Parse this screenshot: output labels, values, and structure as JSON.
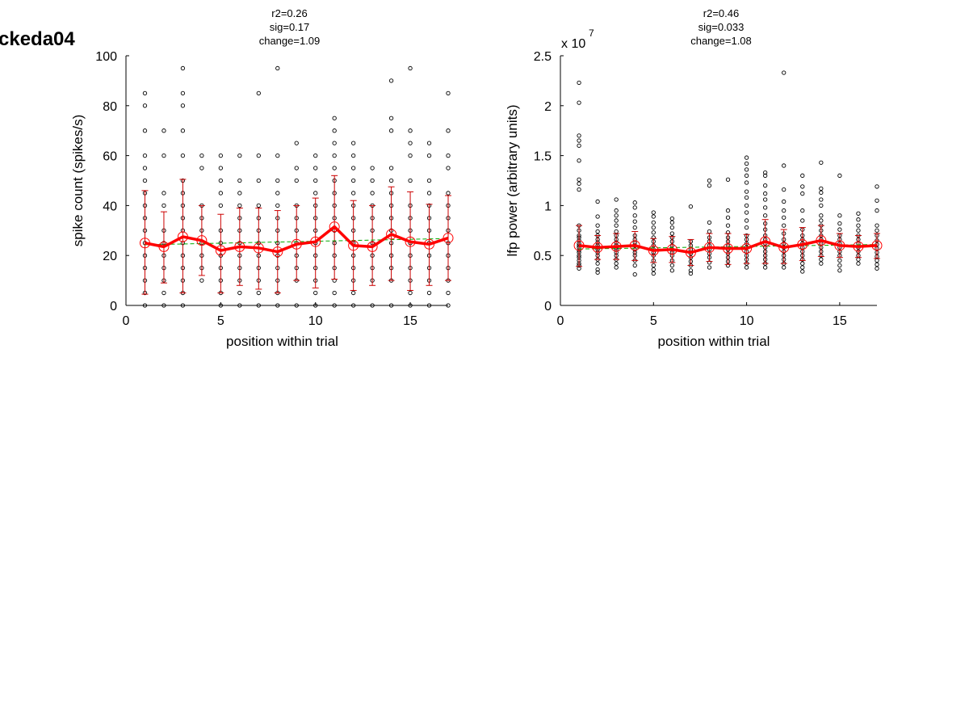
{
  "figure": {
    "id_label": "ckeda04"
  },
  "colors": {
    "mean_line": "#ff0000",
    "error_bar": "#cc0000",
    "fit_line": "#00aa00",
    "points": "#000000",
    "axis": "#000000"
  },
  "chart_data": [
    {
      "type": "scatter",
      "stats": [
        "r2=0.26",
        "sig=0.17",
        "change=1.09"
      ],
      "xlabel": "position within trial",
      "ylabel": "spike count (spikes/s)",
      "exponent_label": "",
      "xlim": [
        0,
        17
      ],
      "ylim": [
        0,
        100
      ],
      "xticks": [
        0,
        5,
        10,
        15
      ],
      "yticks": [
        0,
        20,
        40,
        60,
        80,
        100
      ],
      "ytick_labels": [
        "0",
        "20",
        "40",
        "60",
        "80",
        "100"
      ],
      "x": [
        1,
        2,
        3,
        4,
        5,
        6,
        7,
        8,
        9,
        10,
        11,
        12,
        13,
        14,
        15,
        16,
        17
      ],
      "mean": [
        25,
        23.5,
        27.5,
        26,
        22,
        23.5,
        23,
        21.5,
        24.5,
        25.5,
        31.5,
        24,
        23.5,
        28.5,
        25.5,
        24.5,
        27
      ],
      "err_low": [
        4.5,
        9,
        5,
        12,
        5,
        8,
        6.5,
        5,
        10,
        7,
        10.5,
        6,
        8,
        10,
        6,
        8,
        10
      ],
      "err_high": [
        46,
        37.5,
        50.5,
        40,
        36.5,
        39,
        39,
        38,
        40,
        43,
        52,
        42,
        40,
        47.5,
        45.5,
        40.5,
        44
      ],
      "fit": {
        "x": [
          1,
          17
        ],
        "y": [
          24.3,
          26.8
        ]
      },
      "raw_points": [
        [
          0,
          5,
          10,
          15,
          20,
          25,
          30,
          35,
          40,
          45,
          50,
          55,
          60,
          70,
          80,
          85
        ],
        [
          0,
          5,
          10,
          15,
          20,
          25,
          30,
          40,
          45,
          60,
          70
        ],
        [
          0,
          5,
          10,
          15,
          20,
          25,
          30,
          35,
          40,
          45,
          50,
          60,
          70,
          80,
          85,
          95
        ],
        [
          10,
          15,
          20,
          25,
          30,
          35,
          40,
          55,
          60
        ],
        [
          0,
          5,
          10,
          15,
          20,
          25,
          30,
          40,
          45,
          50,
          55,
          60
        ],
        [
          0,
          5,
          10,
          15,
          20,
          25,
          30,
          35,
          40,
          45,
          50,
          60
        ],
        [
          0,
          5,
          10,
          15,
          20,
          25,
          30,
          35,
          40,
          50,
          60,
          85
        ],
        [
          0,
          5,
          10,
          15,
          20,
          25,
          30,
          35,
          40,
          45,
          50,
          60,
          95
        ],
        [
          0,
          10,
          15,
          20,
          25,
          30,
          35,
          40,
          50,
          55,
          65
        ],
        [
          0,
          5,
          10,
          15,
          20,
          25,
          30,
          35,
          40,
          45,
          50,
          55,
          60
        ],
        [
          0,
          5,
          10,
          15,
          20,
          25,
          30,
          35,
          40,
          45,
          50,
          55,
          60,
          65,
          70,
          75
        ],
        [
          0,
          5,
          10,
          15,
          20,
          25,
          30,
          35,
          40,
          45,
          50,
          55,
          60,
          65
        ],
        [
          0,
          10,
          15,
          20,
          25,
          30,
          35,
          40,
          45,
          50,
          55
        ],
        [
          0,
          10,
          15,
          20,
          25,
          30,
          35,
          40,
          45,
          50,
          55,
          70,
          75,
          90
        ],
        [
          0,
          5,
          10,
          15,
          20,
          25,
          30,
          35,
          40,
          50,
          60,
          65,
          70,
          95
        ],
        [
          0,
          5,
          10,
          15,
          20,
          25,
          30,
          35,
          40,
          45,
          50,
          60,
          65
        ],
        [
          0,
          5,
          10,
          15,
          20,
          25,
          30,
          35,
          40,
          45,
          55,
          60,
          70,
          85
        ]
      ]
    },
    {
      "type": "scatter",
      "stats": [
        "r2=0.46",
        "sig=0.033",
        "change=1.08"
      ],
      "xlabel": "position within trial",
      "ylabel": "lfp power (arbitrary units)",
      "exponent_label": "x 10",
      "exponent_power": "7",
      "xlim": [
        0,
        17
      ],
      "ylim": [
        0,
        2.5
      ],
      "xticks": [
        0,
        5,
        10,
        15
      ],
      "yticks": [
        0,
        0.5,
        1,
        1.5,
        2,
        2.5
      ],
      "ytick_labels": [
        "0",
        "0.5",
        "1",
        "1.5",
        "2",
        "2.5"
      ],
      "x": [
        1,
        2,
        3,
        4,
        5,
        6,
        7,
        8,
        9,
        10,
        11,
        12,
        13,
        14,
        15,
        16,
        17
      ],
      "mean": [
        0.6,
        0.58,
        0.59,
        0.6,
        0.55,
        0.56,
        0.53,
        0.58,
        0.57,
        0.57,
        0.64,
        0.58,
        0.61,
        0.65,
        0.6,
        0.59,
        0.6
      ],
      "err_low": [
        0.39,
        0.46,
        0.46,
        0.45,
        0.43,
        0.43,
        0.4,
        0.44,
        0.41,
        0.42,
        0.42,
        0.42,
        0.45,
        0.49,
        0.48,
        0.48,
        0.47
      ],
      "err_high": [
        0.8,
        0.7,
        0.72,
        0.74,
        0.67,
        0.69,
        0.66,
        0.72,
        0.72,
        0.71,
        0.86,
        0.76,
        0.78,
        0.8,
        0.72,
        0.7,
        0.72
      ],
      "fit": {
        "x": [
          1,
          17
        ],
        "y": [
          0.565,
          0.61
        ]
      },
      "raw_points": [
        [
          0.37,
          0.4,
          0.42,
          0.45,
          0.48,
          0.5,
          0.53,
          0.55,
          0.58,
          0.6,
          0.62,
          0.65,
          0.68,
          0.7,
          0.75,
          0.8,
          1.16,
          1.22,
          1.26,
          1.45,
          1.6,
          1.65,
          1.7,
          2.03,
          2.23
        ],
        [
          0.33,
          0.36,
          0.42,
          0.46,
          0.5,
          0.53,
          0.56,
          0.58,
          0.6,
          0.63,
          0.66,
          0.7,
          0.74,
          0.8,
          0.89,
          1.04
        ],
        [
          0.38,
          0.42,
          0.46,
          0.5,
          0.53,
          0.56,
          0.58,
          0.6,
          0.63,
          0.66,
          0.7,
          0.74,
          0.8,
          0.85,
          0.9,
          0.95,
          1.06
        ],
        [
          0.31,
          0.4,
          0.45,
          0.5,
          0.53,
          0.56,
          0.6,
          0.63,
          0.66,
          0.7,
          0.78,
          0.84,
          0.9,
          0.98,
          1.03
        ],
        [
          0.32,
          0.36,
          0.4,
          0.45,
          0.5,
          0.53,
          0.56,
          0.6,
          0.64,
          0.68,
          0.73,
          0.78,
          0.83,
          0.89,
          0.93
        ],
        [
          0.35,
          0.4,
          0.45,
          0.5,
          0.53,
          0.56,
          0.6,
          0.64,
          0.68,
          0.72,
          0.78,
          0.83,
          0.87
        ],
        [
          0.32,
          0.35,
          0.4,
          0.44,
          0.48,
          0.52,
          0.56,
          0.6,
          0.64,
          0.99
        ],
        [
          0.38,
          0.43,
          0.48,
          0.52,
          0.56,
          0.6,
          0.64,
          0.68,
          0.74,
          0.83,
          1.2,
          1.25
        ],
        [
          0.4,
          0.44,
          0.48,
          0.52,
          0.56,
          0.6,
          0.64,
          0.68,
          0.73,
          0.8,
          0.88,
          0.95,
          1.26
        ],
        [
          0.38,
          0.42,
          0.46,
          0.5,
          0.54,
          0.58,
          0.62,
          0.66,
          0.7,
          0.78,
          0.85,
          0.93,
          1.0,
          1.08,
          1.14,
          1.23,
          1.3,
          1.36,
          1.42,
          1.48
        ],
        [
          0.38,
          0.42,
          0.46,
          0.5,
          0.54,
          0.58,
          0.62,
          0.66,
          0.7,
          0.76,
          0.82,
          0.9,
          0.98,
          1.06,
          1.12,
          1.2,
          1.3,
          1.33
        ],
        [
          0.38,
          0.42,
          0.46,
          0.5,
          0.54,
          0.58,
          0.62,
          0.66,
          0.72,
          0.8,
          0.88,
          0.95,
          1.04,
          1.16,
          1.4,
          2.33
        ],
        [
          0.34,
          0.38,
          0.42,
          0.46,
          0.5,
          0.54,
          0.58,
          0.62,
          0.66,
          0.7,
          0.76,
          0.85,
          0.95,
          1.12,
          1.19,
          1.3
        ],
        [
          0.42,
          0.46,
          0.5,
          0.54,
          0.58,
          0.62,
          0.66,
          0.7,
          0.75,
          0.8,
          0.85,
          0.9,
          1.0,
          1.06,
          1.13,
          1.17,
          1.43
        ],
        [
          0.35,
          0.4,
          0.45,
          0.5,
          0.54,
          0.58,
          0.62,
          0.66,
          0.7,
          0.76,
          0.82,
          0.9,
          1.3
        ],
        [
          0.42,
          0.46,
          0.5,
          0.54,
          0.58,
          0.62,
          0.66,
          0.7,
          0.75,
          0.8,
          0.86,
          0.92
        ],
        [
          0.37,
          0.41,
          0.45,
          0.49,
          0.53,
          0.57,
          0.61,
          0.65,
          0.7,
          0.75,
          0.8,
          0.95,
          1.05,
          1.19
        ]
      ]
    }
  ]
}
